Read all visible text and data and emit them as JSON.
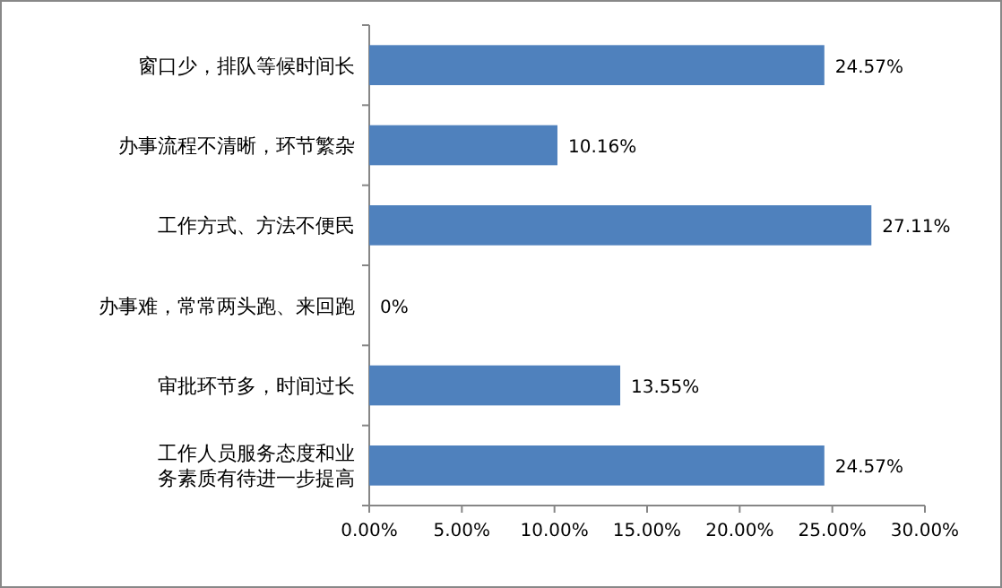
{
  "chart_data": {
    "type": "bar",
    "orientation": "horizontal",
    "categories": [
      "窗口少，排队等候时间长",
      "办事流程不清晰，环节繁杂",
      "工作方式、方法不便民",
      "办事难，常常两头跑、来回跑",
      "审批环节多，时间过长",
      "工作人员服务态度和业务素质有待进一步提高"
    ],
    "values": [
      24.57,
      10.16,
      27.11,
      0,
      13.55,
      24.57
    ],
    "value_labels": [
      "24.57%",
      "10.16%",
      "27.11%",
      "0%",
      "13.55%",
      "24.57%"
    ],
    "color": "#4f81bd",
    "xlim": [
      0,
      30
    ],
    "xticks": [
      {
        "value": 0,
        "label": "0.00%"
      },
      {
        "value": 5,
        "label": "5.00%"
      },
      {
        "value": 10,
        "label": "10.00%"
      },
      {
        "value": 15,
        "label": "15.00%"
      },
      {
        "value": 20,
        "label": "20.00%"
      },
      {
        "value": 25,
        "label": "25.00%"
      },
      {
        "value": 30,
        "label": "30.00%"
      }
    ],
    "grid": false
  }
}
